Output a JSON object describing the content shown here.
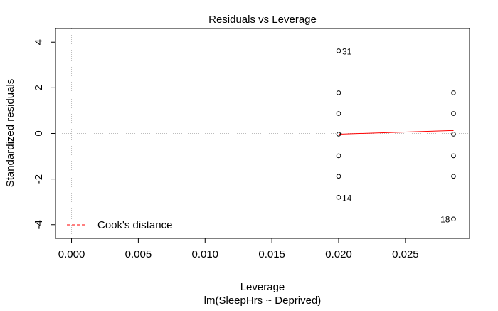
{
  "chart_data": {
    "type": "scatter",
    "title": "Residuals vs Leverage",
    "xlabel": "Leverage",
    "subtitle": "lm(SleepHrs ~ Deprived)",
    "ylabel": "Standardized residuals",
    "xlim": [
      -0.0012,
      0.0298
    ],
    "ylim": [
      -4.6,
      4.6
    ],
    "x_ticks": [
      0.0,
      0.005,
      0.01,
      0.015,
      0.02,
      0.025
    ],
    "x_tick_labels": [
      "0.000",
      "0.005",
      "0.010",
      "0.015",
      "0.020",
      "0.025"
    ],
    "y_ticks": [
      -4,
      -2,
      0,
      2,
      4
    ],
    "y_tick_labels": [
      "-4",
      "-2",
      "0",
      "2",
      "4"
    ],
    "reference_lines": {
      "x": 0,
      "y": 0,
      "color": "#bdbdbd",
      "style": "dotted"
    },
    "series": [
      {
        "points": [
          {
            "x": 0.02,
            "y": 3.62,
            "label": "31"
          },
          {
            "x": 0.02,
            "y": 1.78
          },
          {
            "x": 0.02,
            "y": 0.87
          },
          {
            "x": 0.02,
            "y": -0.03
          },
          {
            "x": 0.02,
            "y": -0.98
          },
          {
            "x": 0.02,
            "y": -1.88
          },
          {
            "x": 0.02,
            "y": -2.8,
            "label": "14"
          },
          {
            "x": 0.0286,
            "y": 1.78
          },
          {
            "x": 0.0286,
            "y": 0.87
          },
          {
            "x": 0.0286,
            "y": -0.03
          },
          {
            "x": 0.0286,
            "y": -0.98
          },
          {
            "x": 0.0286,
            "y": -1.88
          },
          {
            "x": 0.0286,
            "y": -3.75,
            "label": "18"
          }
        ]
      }
    ],
    "smooth_line": {
      "color": "#ff0000",
      "points": [
        [
          0.02,
          -0.03
        ],
        [
          0.0286,
          0.13
        ]
      ]
    },
    "legend": {
      "position": "bottom-left",
      "entries": [
        {
          "label": "Cook's distance",
          "color": "#ff0000",
          "style": "dashed"
        }
      ]
    }
  }
}
